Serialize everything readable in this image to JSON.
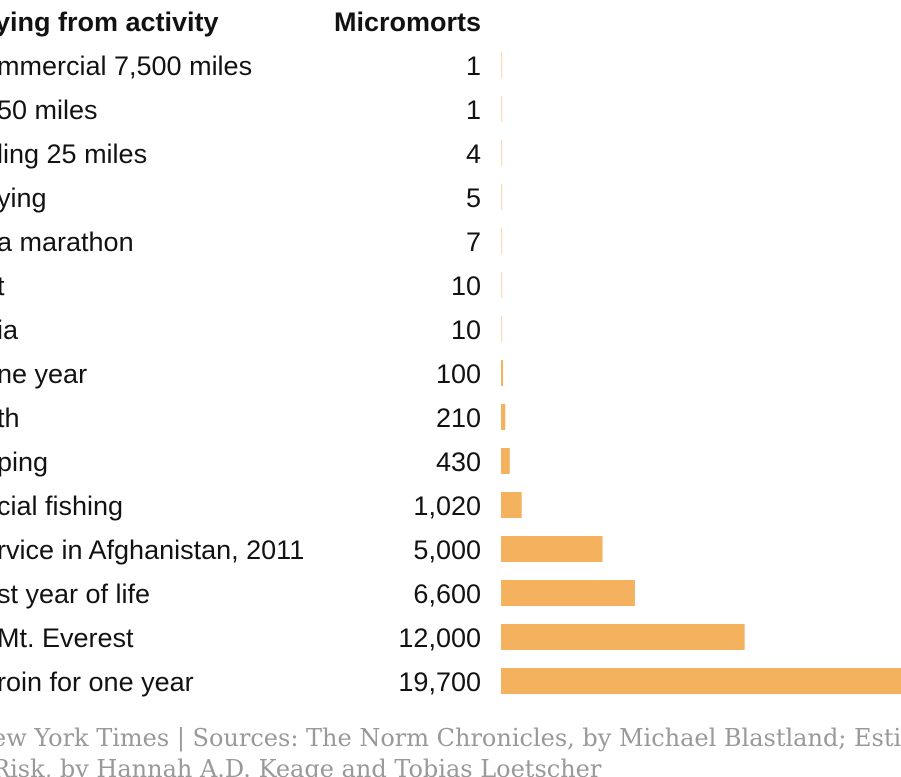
{
  "chart_data": {
    "type": "bar",
    "orientation": "horizontal",
    "label_header": "ying from activity",
    "value_header": "Micromorts",
    "categories": [
      "mmercial 7,500 miles",
      "50 miles",
      "ling 25 miles",
      "ying",
      "a marathon",
      "t",
      "ia",
      "ne year",
      "th",
      "ping",
      "cial fishing",
      "rvice in Afghanistan, 2011",
      "st year of life",
      "Mt. Everest",
      "roin for one year"
    ],
    "values": [
      1,
      1,
      4,
      5,
      7,
      10,
      10,
      100,
      210,
      430,
      1020,
      5000,
      6600,
      12000,
      19700
    ],
    "value_labels": [
      "1",
      "1",
      "4",
      "5",
      "7",
      "10",
      "10",
      "100",
      "210",
      "430",
      "1,020",
      "5,000",
      "6,600",
      "12,000",
      "19,700"
    ],
    "xlim": [
      0,
      19700
    ],
    "bar_color": "#f4b25e",
    "source_line_1": "ew York Times | Sources: The Norm Chronicles, by Michael Blastland; Estim",
    "source_line_2": " Risk, by Hannah A.D. Keage and Tobias Loetscher"
  }
}
